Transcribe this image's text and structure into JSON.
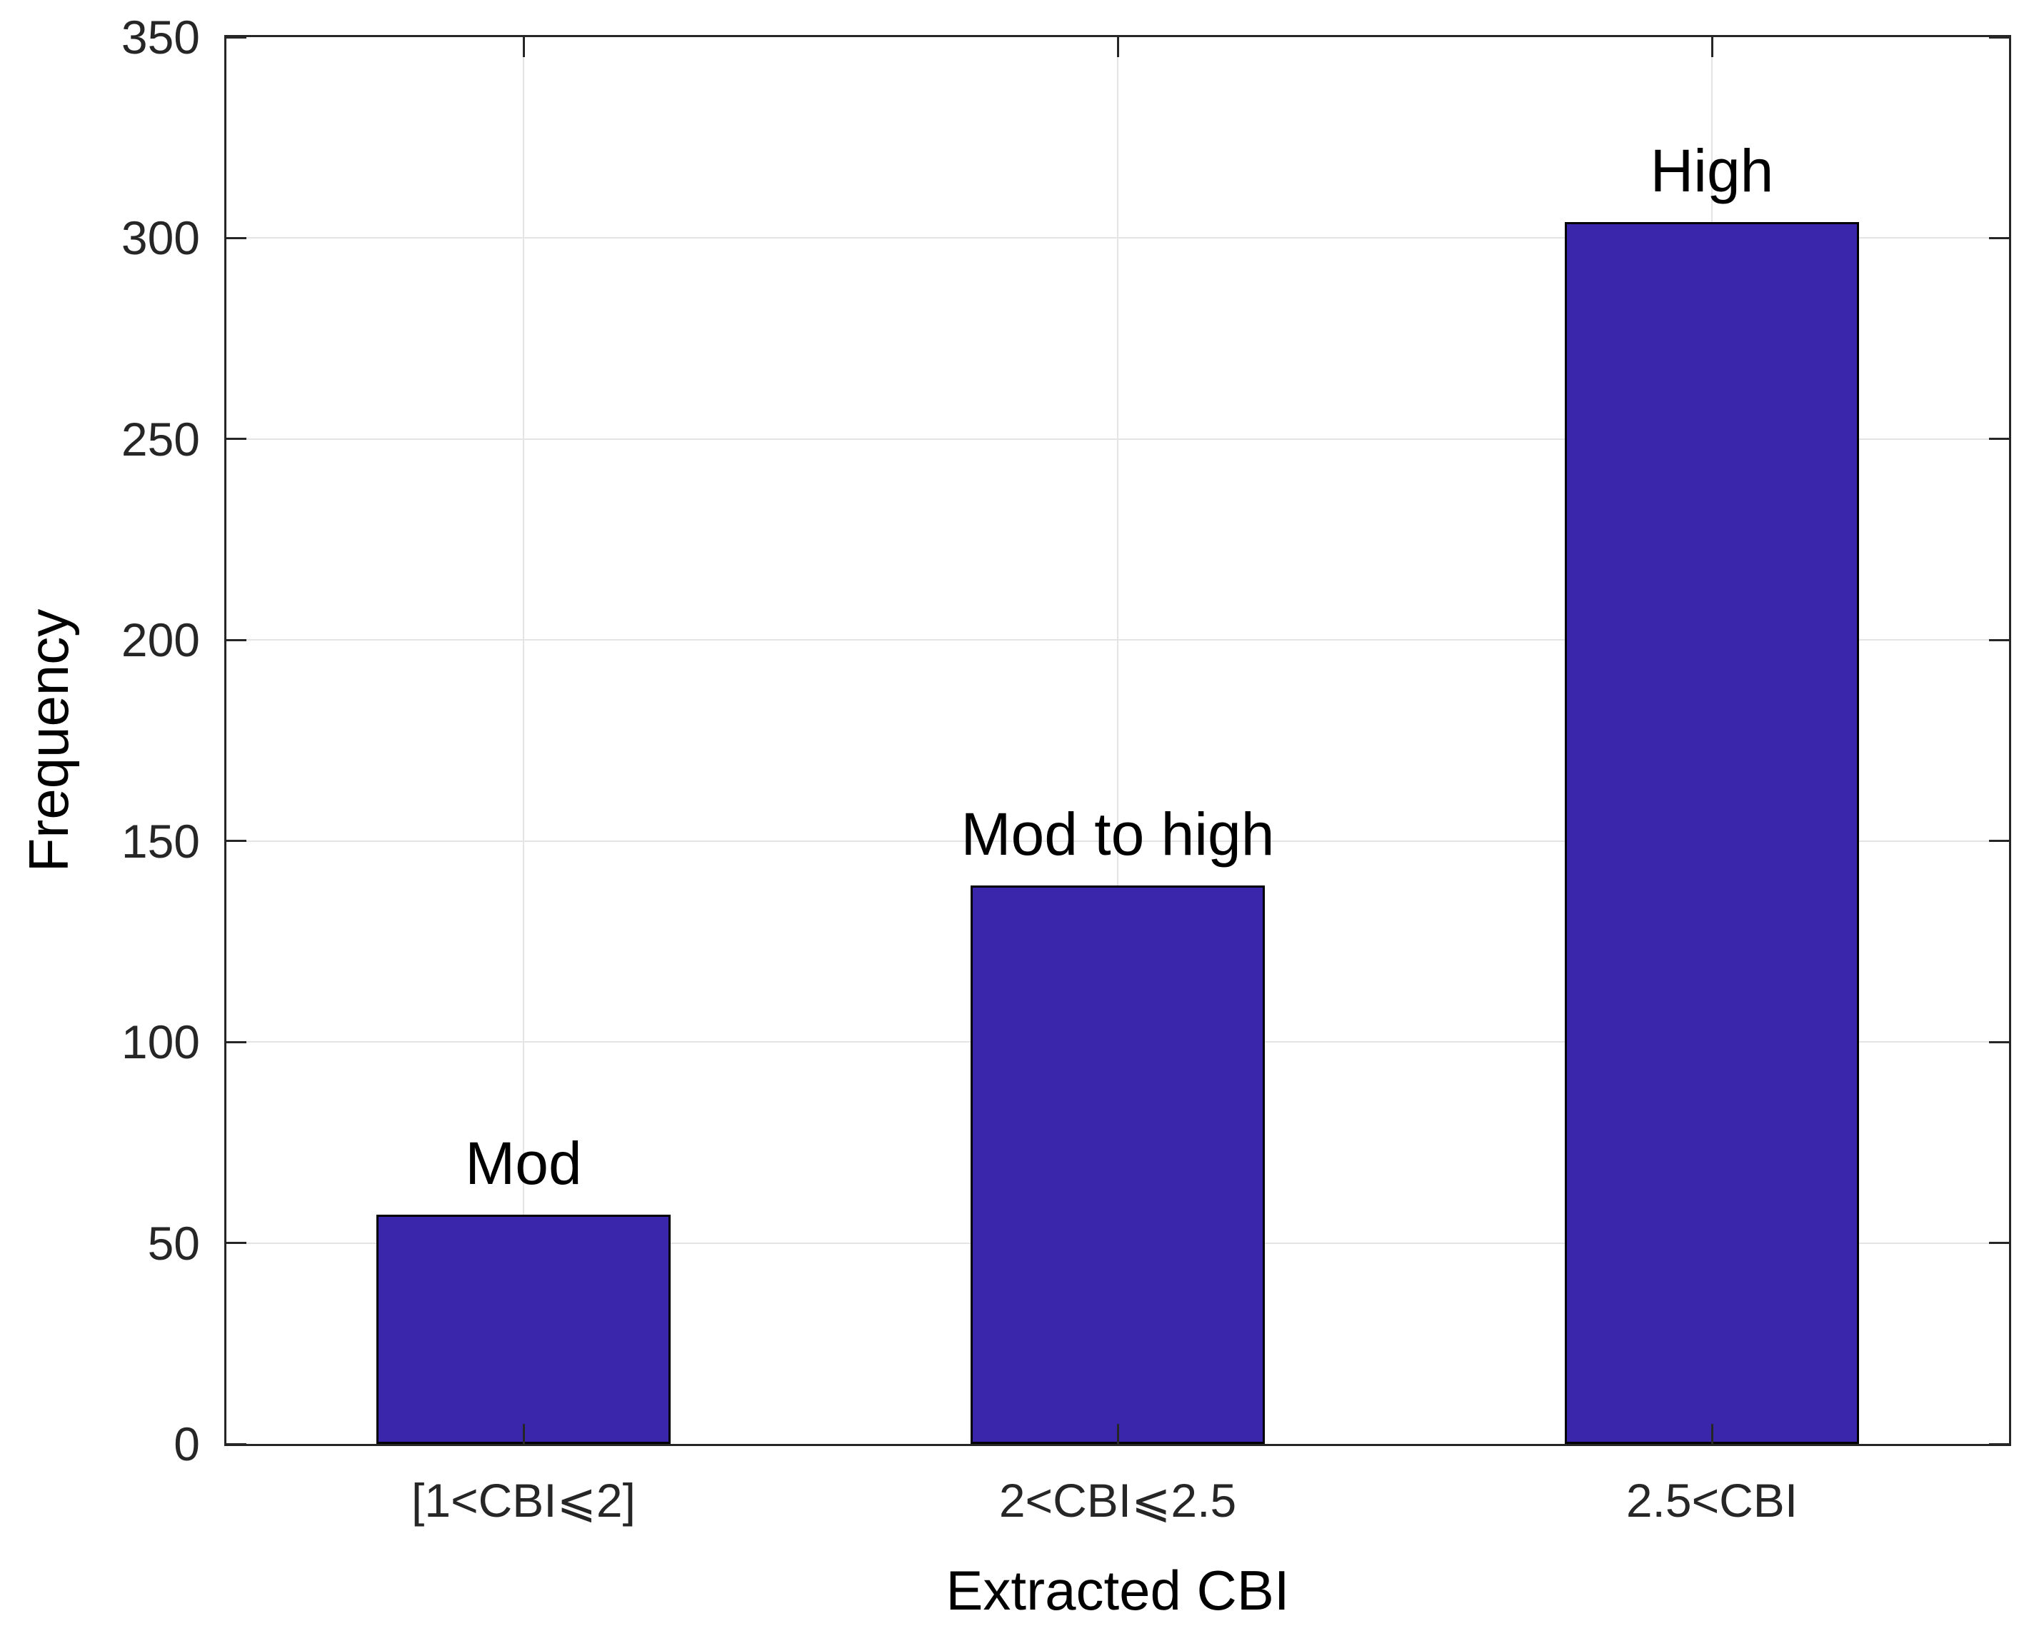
{
  "figure": {
    "background": "#FFFFFF"
  },
  "chart_data": {
    "type": "bar",
    "title": "",
    "categories": [
      "[1<CBI⩽2]",
      "2<CBI⩽2.5",
      "2.5<CBI"
    ],
    "values": [
      57,
      139,
      304
    ],
    "bar_labels": [
      "Mod",
      "Mod to high",
      "High"
    ],
    "xlabel": "Extracted CBI",
    "ylabel": "Frequency",
    "ylim": [
      0,
      350
    ],
    "yticks": [
      0,
      50,
      100,
      150,
      200,
      250,
      300,
      350
    ],
    "grid": true,
    "legend": null,
    "colors": {
      "bar_fill": "#3A26AA",
      "bar_edge": "#000000",
      "grid_line": "#E4E4E4",
      "axis_line": "#262626",
      "tick_label": "#262626",
      "annotation_text": "#000000"
    }
  }
}
